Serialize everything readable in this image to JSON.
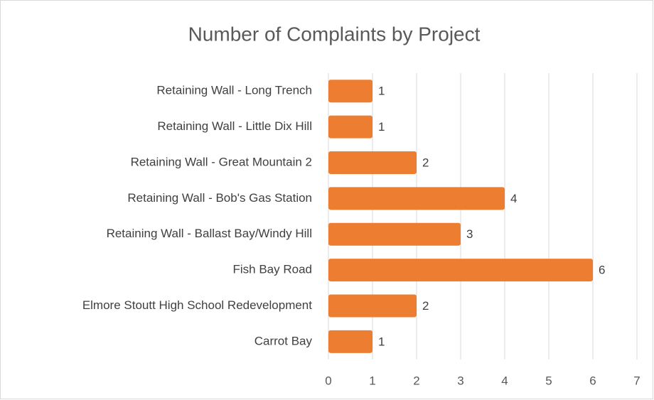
{
  "chart_data": {
    "type": "bar",
    "orientation": "horizontal",
    "title": "Number of Complaints by Project",
    "categories": [
      "Retaining Wall - Long Trench",
      "Retaining Wall - Little Dix Hill",
      "Retaining Wall - Great Mountain 2",
      "Retaining Wall - Bob's Gas Station",
      "Retaining Wall - Ballast Bay/Windy Hill",
      "Fish Bay Road",
      "Elmore Stoutt High School Redevelopment",
      "Carrot Bay"
    ],
    "values": [
      1,
      1,
      2,
      4,
      3,
      6,
      2,
      1
    ],
    "color": "#ed7d31",
    "xlim": [
      0,
      7
    ],
    "xticks": [
      0,
      1,
      2,
      3,
      4,
      5,
      6,
      7
    ],
    "grid": true
  }
}
